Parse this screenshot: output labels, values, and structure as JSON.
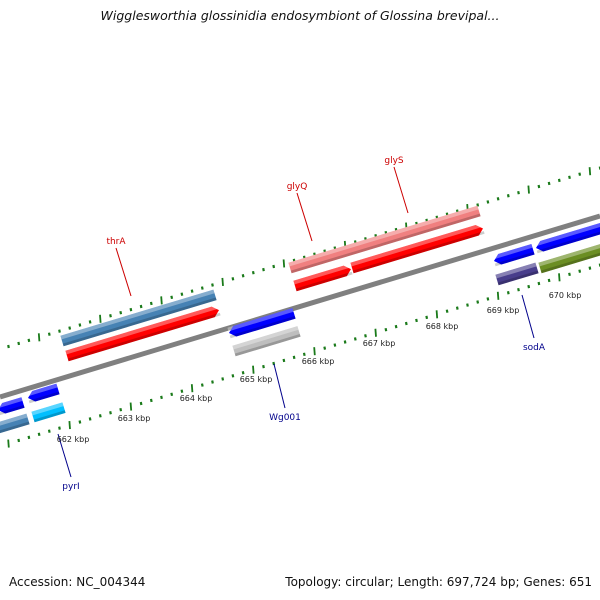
{
  "title": "Wigglesworthia glossinidia endosymbiont of Glossina brevipal...",
  "footer": {
    "accession": "Accession: NC_004344",
    "stats": "Topology: circular; Length: 697,724 bp; Genes: 651"
  },
  "tick_labels": [
    "662 kbp",
    "663 kbp",
    "664 kbp",
    "665 kbp",
    "666 kbp",
    "667 kbp",
    "668 kbp",
    "669 kbp",
    "670 kbp"
  ],
  "gene_labels": {
    "thrA": "thrA",
    "glyQ": "glyQ",
    "glyS": "glyS",
    "sodA": "sodA",
    "Wg001": "Wg001",
    "pyrI": "pyrI"
  },
  "colors": {
    "forward_label": "#cc0000",
    "reverse_label": "#00008b",
    "backbone": "#808080",
    "tick": "#1a7a1a",
    "red": "#ff0000",
    "pink": "#f08080",
    "steelblue": "#4682b4",
    "blue": "#0000ff",
    "gray": "#bebebe",
    "deepskyblue": "#00bfff",
    "slateblue": "#483d8b",
    "olive": "#6b8e23"
  }
}
